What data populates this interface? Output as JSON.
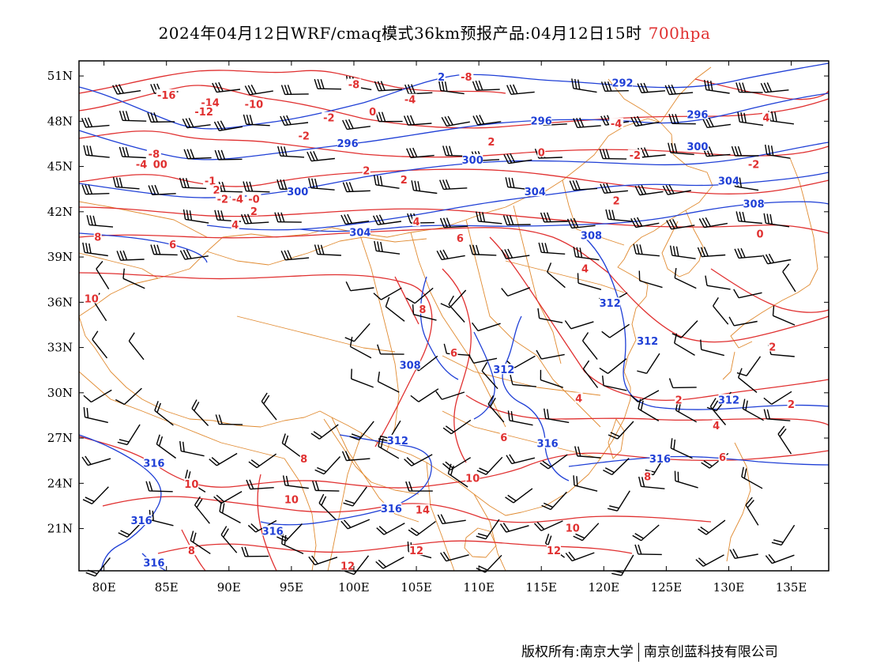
{
  "title": {
    "main": "2024年04月12日WRF/cmaq模式36km预报产品:04月12日15时",
    "level": "700hpa",
    "level_color": "#e03030"
  },
  "axes": {
    "lon_labels": [
      "80E",
      "85E",
      "90E",
      "95E",
      "100E",
      "105E",
      "110E",
      "115E",
      "120E",
      "125E",
      "130E",
      "135E"
    ],
    "lon_values": [
      80,
      85,
      90,
      95,
      100,
      105,
      110,
      115,
      120,
      125,
      130,
      135
    ],
    "lat_labels": [
      "51N",
      "48N",
      "45N",
      "42N",
      "39N",
      "36N",
      "33N",
      "30N",
      "27N",
      "24N",
      "21N"
    ],
    "lat_values": [
      51,
      48,
      45,
      42,
      39,
      36,
      33,
      30,
      27,
      24,
      21
    ],
    "lon_range": [
      78,
      138
    ],
    "lat_range": [
      18.2,
      52
    ]
  },
  "colors": {
    "height_contour": "#1f3fd6",
    "temperature_contour": "#e03030",
    "boundary": "#e08a30",
    "wind_barb": "#000000"
  },
  "height_labels": [
    {
      "text": "292",
      "lon": 121.5,
      "lat": 50.5
    },
    {
      "text": "296",
      "lon": 115,
      "lat": 48.0
    },
    {
      "text": "296",
      "lon": 127.5,
      "lat": 48.4
    },
    {
      "text": "296",
      "lon": 99.5,
      "lat": 46.5
    },
    {
      "text": "300",
      "lon": 109.5,
      "lat": 45.4
    },
    {
      "text": "300",
      "lon": 127.5,
      "lat": 46.3
    },
    {
      "text": "300",
      "lon": 95.5,
      "lat": 43.3
    },
    {
      "text": "304",
      "lon": 114.5,
      "lat": 43.3
    },
    {
      "text": "304",
      "lon": 130,
      "lat": 44.0
    },
    {
      "text": "304",
      "lon": 100.5,
      "lat": 40.6
    },
    {
      "text": "308",
      "lon": 119,
      "lat": 40.4
    },
    {
      "text": "308",
      "lon": 132,
      "lat": 42.5
    },
    {
      "text": "312",
      "lon": 120.5,
      "lat": 35.9
    },
    {
      "text": "312",
      "lon": 123.5,
      "lat": 33.4
    },
    {
      "text": "312",
      "lon": 112,
      "lat": 31.5
    },
    {
      "text": "312",
      "lon": 130,
      "lat": 29.5
    },
    {
      "text": "308",
      "lon": 104.5,
      "lat": 31.8
    },
    {
      "text": "312",
      "lon": 103.5,
      "lat": 26.8
    },
    {
      "text": "316",
      "lon": 115.5,
      "lat": 26.6
    },
    {
      "text": "316",
      "lon": 124.5,
      "lat": 25.6
    },
    {
      "text": "316",
      "lon": 84,
      "lat": 25.3
    },
    {
      "text": "316",
      "lon": 103,
      "lat": 22.3
    },
    {
      "text": "316",
      "lon": 83,
      "lat": 21.5
    },
    {
      "text": "316",
      "lon": 93.5,
      "lat": 20.8
    },
    {
      "text": "316",
      "lon": 84,
      "lat": 18.7
    },
    {
      "text": "2",
      "lon": 107,
      "lat": 50.9
    }
  ],
  "temp_labels": [
    {
      "text": "-8",
      "lon": 121,
      "lat": 52
    },
    {
      "text": "-8",
      "lon": 109,
      "lat": 50.9
    },
    {
      "text": "-8",
      "lon": 100,
      "lat": 50.4
    },
    {
      "text": "-16",
      "lon": 85,
      "lat": 49.7
    },
    {
      "text": "-14",
      "lon": 88.5,
      "lat": 49.2
    },
    {
      "text": "-12",
      "lon": 88,
      "lat": 48.6
    },
    {
      "text": "-10",
      "lon": 92,
      "lat": 49.1
    },
    {
      "text": "-4",
      "lon": 104.5,
      "lat": 49.4
    },
    {
      "text": "-2",
      "lon": 98,
      "lat": 48.2
    },
    {
      "text": "0",
      "lon": 101.5,
      "lat": 48.6
    },
    {
      "text": "-4",
      "lon": 121,
      "lat": 47.8
    },
    {
      "text": "4",
      "lon": 133,
      "lat": 48.2
    },
    {
      "text": "-2",
      "lon": 96,
      "lat": 47.0
    },
    {
      "text": "2",
      "lon": 111,
      "lat": 46.6
    },
    {
      "text": "0",
      "lon": 115,
      "lat": 45.9
    },
    {
      "text": "-2",
      "lon": 122.5,
      "lat": 45.7
    },
    {
      "text": "-2",
      "lon": 132,
      "lat": 45.1
    },
    {
      "text": "-8",
      "lon": 84,
      "lat": 45.8
    },
    {
      "text": "-4",
      "lon": 83,
      "lat": 45.1
    },
    {
      "text": "00",
      "lon": 84.5,
      "lat": 45.1
    },
    {
      "text": "-1",
      "lon": 88.5,
      "lat": 44.0
    },
    {
      "text": "2",
      "lon": 89,
      "lat": 43.4
    },
    {
      "text": "-2",
      "lon": 89.5,
      "lat": 42.8
    },
    {
      "text": "-4",
      "lon": 90.7,
      "lat": 42.8
    },
    {
      "text": "-0",
      "lon": 92,
      "lat": 42.8
    },
    {
      "text": "2",
      "lon": 101,
      "lat": 44.7
    },
    {
      "text": "2",
      "lon": 104,
      "lat": 44.1
    },
    {
      "text": "2",
      "lon": 92,
      "lat": 42.0
    },
    {
      "text": "2",
      "lon": 121,
      "lat": 42.7
    },
    {
      "text": "4",
      "lon": 90.5,
      "lat": 41.1
    },
    {
      "text": "4",
      "lon": 105,
      "lat": 41.3
    },
    {
      "text": "0",
      "lon": 132.5,
      "lat": 40.5
    },
    {
      "text": "8",
      "lon": 79.5,
      "lat": 40.3
    },
    {
      "text": "6",
      "lon": 85.5,
      "lat": 39.8
    },
    {
      "text": "6",
      "lon": 108.5,
      "lat": 40.2
    },
    {
      "text": "4",
      "lon": 118.5,
      "lat": 38.2
    },
    {
      "text": "10",
      "lon": 79,
      "lat": 36.2
    },
    {
      "text": "8",
      "lon": 105.5,
      "lat": 35.5
    },
    {
      "text": "6",
      "lon": 108,
      "lat": 32.6
    },
    {
      "text": "2",
      "lon": 133.5,
      "lat": 33.0
    },
    {
      "text": "4",
      "lon": 118,
      "lat": 29.6
    },
    {
      "text": "2",
      "lon": 126,
      "lat": 29.5
    },
    {
      "text": "2",
      "lon": 135,
      "lat": 29.2
    },
    {
      "text": "4",
      "lon": 129,
      "lat": 27.8
    },
    {
      "text": "6",
      "lon": 112,
      "lat": 27.0
    },
    {
      "text": "6",
      "lon": 129.5,
      "lat": 25.7
    },
    {
      "text": "8",
      "lon": 96,
      "lat": 25.6
    },
    {
      "text": "8",
      "lon": 123.5,
      "lat": 24.4
    },
    {
      "text": "10",
      "lon": 109.5,
      "lat": 24.3
    },
    {
      "text": "10",
      "lon": 87,
      "lat": 23.9
    },
    {
      "text": "10",
      "lon": 95,
      "lat": 22.9
    },
    {
      "text": "14",
      "lon": 105.5,
      "lat": 22.2
    },
    {
      "text": "10",
      "lon": 117.5,
      "lat": 21.0
    },
    {
      "text": "8",
      "lon": 87,
      "lat": 19.5
    },
    {
      "text": "12",
      "lon": 105,
      "lat": 19.5
    },
    {
      "text": "12",
      "lon": 116,
      "lat": 19.5
    },
    {
      "text": "12",
      "lon": 99.5,
      "lat": 18.5
    }
  ],
  "copyright": {
    "left": "版权所有:南京大学",
    "right": "南京创蓝科技有限公司"
  }
}
